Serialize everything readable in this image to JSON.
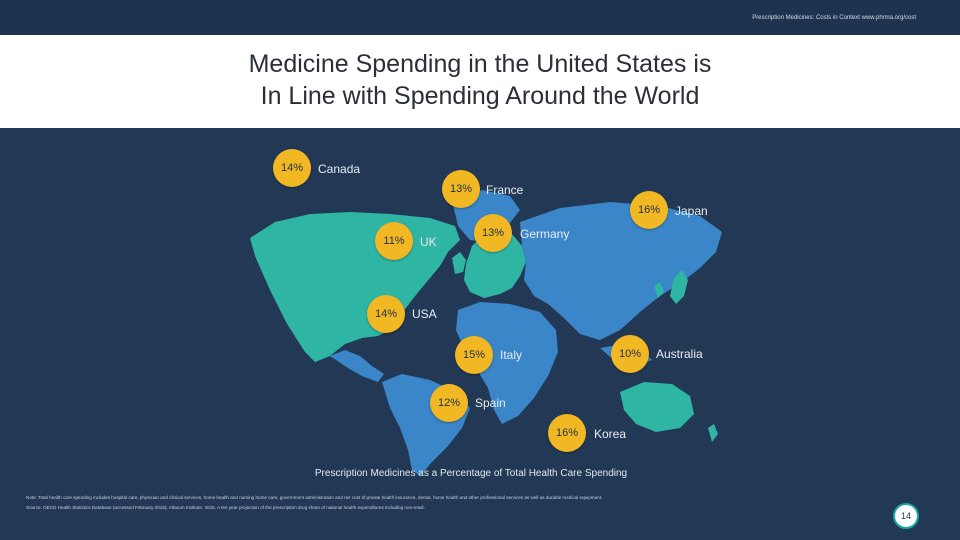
{
  "header": {
    "source_line": "Prescription Medicines: Costs in Context  www.phrma.org/cost"
  },
  "slide": {
    "title_line1": "Medicine Spending in the United States is",
    "title_line2": "In Line with Spending Around the World",
    "caption": "Prescription Medicines as a Percentage of Total Health Care Spending",
    "note_line1": "Note: Total health care spending includes hospital care, physician and clinical services, home health and nursing home care, government administration and net cost of private health insurance, dental, home health and other professional services as well as durable medical equipment.",
    "note_line2": "Source: OECD Health Statistics Database (accessed February 2016); Altarum Institute. 2015. A ten year projection of the prescription drug share of national health expenditures including non-retail.",
    "page_number": "14"
  },
  "colors": {
    "background": "#1d3350",
    "ocean": "#1e3552",
    "land": "#3a86c8",
    "highlight_land": "#2fb5a4",
    "badge": "#f2b824"
  },
  "markers": [
    {
      "key": "canada",
      "pct": "14%",
      "country": "Canada"
    },
    {
      "key": "france",
      "pct": "13%",
      "country": "France"
    },
    {
      "key": "japan",
      "pct": "16%",
      "country": "Japan"
    },
    {
      "key": "uk",
      "pct": "11%",
      "country": "UK"
    },
    {
      "key": "germany",
      "pct": "13%",
      "country": "Germany"
    },
    {
      "key": "usa",
      "pct": "14%",
      "country": "USA"
    },
    {
      "key": "italy",
      "pct": "15%",
      "country": "Italy"
    },
    {
      "key": "australia",
      "pct": "10%",
      "country": "Australia"
    },
    {
      "key": "spain",
      "pct": "12%",
      "country": "Spain"
    },
    {
      "key": "korea",
      "pct": "16%",
      "country": "Korea"
    }
  ]
}
